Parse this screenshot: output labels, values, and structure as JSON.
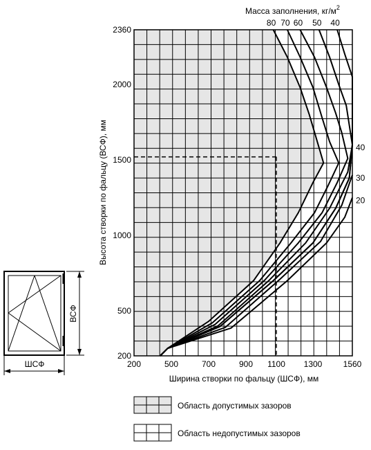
{
  "chart_data": {
    "type": "line",
    "title": "",
    "top_axis_label": "Масса заполнения, кг/м",
    "top_axis_label_sup": "2",
    "xlabel": "Ширина створки по фальцу (ШСФ), мм",
    "ylabel": "Высота створки по фальцу (ВСФ), мм",
    "xlim": [
      200,
      1560
    ],
    "ylim": [
      200,
      2360
    ],
    "grid": true,
    "x_tick_labels": [
      "200",
      "500",
      "700",
      "900",
      "1100",
      "1300",
      "1560"
    ],
    "y_tick_labels": [
      "200",
      "500",
      "1000",
      "1500",
      "2000",
      "2360"
    ],
    "x_ticks": [
      200,
      500,
      700,
      900,
      1100,
      1300,
      1560
    ],
    "y_ticks": [
      200,
      500,
      1000,
      1500,
      2000,
      2360
    ],
    "series": [
      {
        "name": "80",
        "label_pos": "top",
        "points": [
          [
            1080,
            2360
          ],
          [
            1160,
            2180
          ],
          [
            1230,
            1980
          ],
          [
            1280,
            1800
          ],
          [
            1320,
            1650
          ],
          [
            1370,
            1480
          ],
          [
            1300,
            1350
          ],
          [
            1220,
            1150
          ],
          [
            1120,
            950
          ],
          [
            950,
            700
          ],
          [
            700,
            430
          ],
          [
            470,
            250
          ],
          [
            410,
            200
          ]
        ]
      },
      {
        "name": "70",
        "label_pos": "top",
        "points": [
          [
            1160,
            2360
          ],
          [
            1230,
            2180
          ],
          [
            1300,
            1980
          ],
          [
            1360,
            1780
          ],
          [
            1410,
            1620
          ],
          [
            1470,
            1480
          ],
          [
            1400,
            1330
          ],
          [
            1310,
            1150
          ],
          [
            1180,
            950
          ],
          [
            990,
            700
          ],
          [
            720,
            420
          ],
          [
            470,
            250
          ],
          [
            410,
            200
          ]
        ]
      },
      {
        "name": "60",
        "label_pos": "top",
        "points": [
          [
            1230,
            2360
          ],
          [
            1310,
            2180
          ],
          [
            1390,
            1980
          ],
          [
            1450,
            1810
          ],
          [
            1490,
            1680
          ],
          [
            1530,
            1510
          ],
          [
            1460,
            1350
          ],
          [
            1360,
            1150
          ],
          [
            1220,
            950
          ],
          [
            1020,
            700
          ],
          [
            735,
            410
          ],
          [
            470,
            250
          ],
          [
            410,
            200
          ]
        ]
      },
      {
        "name": "50",
        "label_pos": "top",
        "points": [
          [
            1340,
            2360
          ],
          [
            1410,
            2180
          ],
          [
            1470,
            2000
          ],
          [
            1520,
            1860
          ],
          [
            1560,
            1600
          ],
          [
            1530,
            1420
          ],
          [
            1410,
            1180
          ],
          [
            1260,
            950
          ],
          [
            1050,
            700
          ],
          [
            750,
            400
          ],
          [
            470,
            250
          ],
          [
            410,
            200
          ]
        ]
      },
      {
        "name": "40",
        "label_pos": "top",
        "points": [
          [
            1460,
            2360
          ],
          [
            1510,
            2200
          ],
          [
            1560,
            2050
          ],
          [
            1560,
            1600
          ],
          [
            1540,
            1380
          ],
          [
            1450,
            1180
          ],
          [
            1300,
            950
          ],
          [
            1080,
            700
          ],
          [
            760,
            395
          ],
          [
            470,
            250
          ],
          [
            410,
            200
          ]
        ]
      },
      {
        "name": "40",
        "label_pos": "right",
        "points": [
          [
            1560,
            1600
          ],
          [
            1540,
            1380
          ],
          [
            1450,
            1180
          ],
          [
            1300,
            950
          ],
          [
            1080,
            700
          ],
          [
            760,
            395
          ],
          [
            470,
            250
          ],
          [
            410,
            200
          ]
        ]
      },
      {
        "name": "30",
        "label_pos": "right",
        "points": [
          [
            1560,
            1400
          ],
          [
            1490,
            1200
          ],
          [
            1350,
            960
          ],
          [
            1120,
            710
          ],
          [
            790,
            390
          ],
          [
            470,
            250
          ],
          [
            410,
            200
          ]
        ]
      },
      {
        "name": "20",
        "label_pos": "right",
        "points": [
          [
            1560,
            1250
          ],
          [
            1510,
            1120
          ],
          [
            1390,
            950
          ],
          [
            1160,
            700
          ],
          [
            820,
            385
          ],
          [
            470,
            250
          ],
          [
            410,
            200
          ]
        ]
      }
    ],
    "top_labels": [
      "80",
      "70",
      "60",
      "50",
      "40"
    ],
    "right_labels": [
      "40",
      "30",
      "20"
    ],
    "reference_point": {
      "x": 1100,
      "y": 1520
    },
    "regions": {
      "admissible": "Область допустимых зазоров",
      "inadmissible": "Область недопустимых зазоров"
    }
  },
  "sash_diagram": {
    "width_label": "ШСФ",
    "height_label": "ВСФ"
  },
  "colors": {
    "admissible_fill": "#e6e6e6",
    "inadmissible_fill": "#ffffff",
    "line": "#000000"
  }
}
